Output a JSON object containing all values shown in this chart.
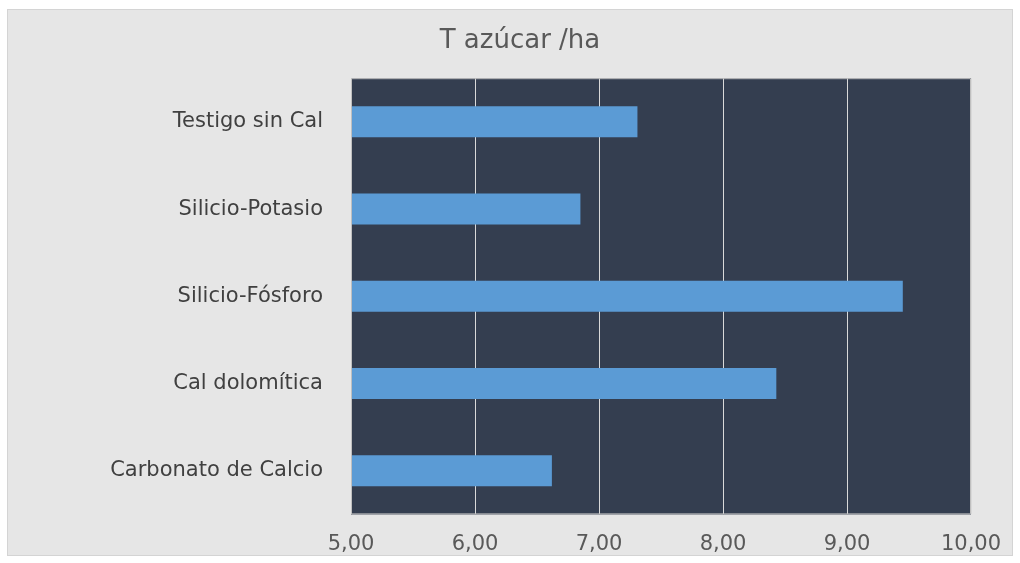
{
  "chart_data": {
    "type": "bar",
    "orientation": "horizontal",
    "title": "T azúcar /ha",
    "categories": [
      "Testigo sin Cal",
      "Silicio-Potasio",
      "Silicio-Fósforo",
      "Cal dolomítica",
      "Carbonato de Calcio"
    ],
    "values": [
      7.31,
      6.85,
      9.45,
      8.43,
      6.62
    ],
    "color": "#5b9bd5",
    "xlim": [
      5,
      10
    ],
    "xticks": [
      {
        "value": 5,
        "label": "5,00"
      },
      {
        "value": 6,
        "label": "6,00"
      },
      {
        "value": 7,
        "label": "7,00"
      },
      {
        "value": 8,
        "label": "8,00"
      },
      {
        "value": 9,
        "label": "9,00"
      },
      {
        "value": 10,
        "label": "10,00"
      }
    ],
    "grid": "x"
  }
}
